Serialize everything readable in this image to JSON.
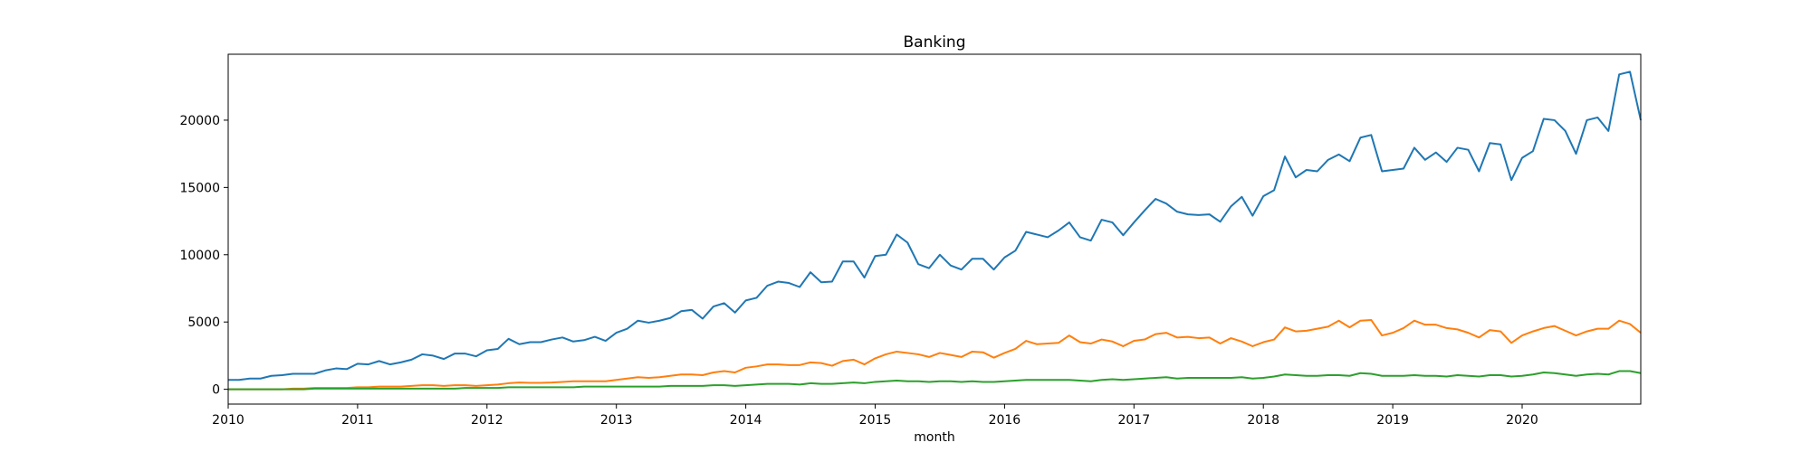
{
  "chart_data": {
    "type": "line",
    "title": "Banking",
    "xlabel": "month",
    "ylabel": "",
    "xlim": [
      "2010-01",
      "2020-12"
    ],
    "ylim": [
      -1100,
      24900
    ],
    "grid": false,
    "legend": "none",
    "x_ticks": [
      "2010",
      "2011",
      "2012",
      "2013",
      "2014",
      "2015",
      "2016",
      "2017",
      "2018",
      "2019",
      "2020"
    ],
    "y_ticks": [
      0,
      5000,
      10000,
      15000,
      20000
    ],
    "x_start": "2010-01",
    "series": [
      {
        "color": "#1f77b4",
        "values": [
          700,
          700,
          800,
          800,
          1000,
          1050,
          1150,
          1150,
          1150,
          1400,
          1550,
          1500,
          1900,
          1850,
          2100,
          1850,
          2000,
          2200,
          2600,
          2500,
          2250,
          2650,
          2650,
          2450,
          2900,
          3000,
          3750,
          3350,
          3500,
          3500,
          3700,
          3850,
          3550,
          3650,
          3900,
          3600,
          4200,
          4500,
          5100,
          4950,
          5100,
          5300,
          5800,
          5900,
          5250,
          6150,
          6400,
          5700,
          6600,
          6800,
          7700,
          8000,
          7900,
          7600,
          8700,
          7950,
          8000,
          9500,
          9500,
          8300,
          9900,
          10000,
          11500,
          10900,
          9300,
          9000,
          10000,
          9200,
          8900,
          9700,
          9700,
          8900,
          9800,
          10300,
          11700,
          11500,
          11300,
          11800,
          12400,
          11300,
          11050,
          12600,
          12400,
          11450,
          12400,
          13300,
          14150,
          13800,
          13200,
          13000,
          12950,
          13000,
          12450,
          13600,
          14300,
          12900,
          14350,
          14800,
          17300,
          15750,
          16300,
          16200,
          17050,
          17450,
          16950,
          18700,
          18900,
          16200,
          16300,
          16400,
          17950,
          17050,
          17600,
          16900,
          17950,
          17800,
          16200,
          18300,
          18200,
          15550,
          17200,
          17700,
          20100,
          20000,
          19200,
          17500,
          20000,
          20200,
          19200,
          23400,
          23600,
          20000
        ]
      },
      {
        "color": "#ff7f0e",
        "values": [
          0,
          0,
          0,
          0,
          0,
          0,
          50,
          50,
          100,
          100,
          100,
          100,
          150,
          150,
          200,
          200,
          200,
          250,
          300,
          300,
          250,
          300,
          300,
          250,
          300,
          350,
          450,
          500,
          480,
          480,
          500,
          550,
          600,
          600,
          600,
          600,
          700,
          800,
          900,
          850,
          900,
          1000,
          1100,
          1100,
          1050,
          1250,
          1350,
          1250,
          1600,
          1700,
          1850,
          1850,
          1800,
          1800,
          2000,
          1950,
          1750,
          2100,
          2200,
          1850,
          2300,
          2600,
          2800,
          2700,
          2600,
          2400,
          2700,
          2550,
          2400,
          2800,
          2750,
          2350,
          2700,
          3000,
          3600,
          3350,
          3400,
          3450,
          4000,
          3500,
          3400,
          3700,
          3550,
          3200,
          3600,
          3700,
          4100,
          4200,
          3850,
          3900,
          3800,
          3850,
          3400,
          3800,
          3550,
          3200,
          3500,
          3700,
          4600,
          4300,
          4350,
          4500,
          4650,
          5100,
          4600,
          5100,
          5150,
          4000,
          4200,
          4550,
          5100,
          4800,
          4800,
          4550,
          4450,
          4200,
          3850,
          4400,
          4300,
          3450,
          4000,
          4300,
          4550,
          4700,
          4350,
          4000,
          4300,
          4500,
          4500,
          5100,
          4850,
          4200
        ]
      },
      {
        "color": "#2ca02c",
        "values": [
          0,
          0,
          0,
          0,
          0,
          0,
          0,
          0,
          50,
          50,
          50,
          50,
          50,
          50,
          50,
          50,
          50,
          50,
          50,
          50,
          50,
          50,
          100,
          100,
          100,
          100,
          150,
          150,
          150,
          150,
          150,
          150,
          150,
          200,
          200,
          200,
          200,
          200,
          200,
          200,
          200,
          250,
          250,
          250,
          250,
          300,
          300,
          250,
          300,
          350,
          400,
          400,
          400,
          350,
          450,
          400,
          400,
          450,
          500,
          450,
          550,
          600,
          650,
          600,
          600,
          550,
          600,
          600,
          550,
          600,
          550,
          550,
          600,
          650,
          700,
          700,
          700,
          700,
          700,
          650,
          600,
          700,
          750,
          700,
          750,
          800,
          850,
          900,
          800,
          850,
          850,
          850,
          850,
          850,
          900,
          800,
          850,
          950,
          1100,
          1050,
          1000,
          1000,
          1050,
          1050,
          1000,
          1200,
          1150,
          1000,
          1000,
          1000,
          1050,
          1000,
          1000,
          950,
          1050,
          1000,
          950,
          1050,
          1050,
          950,
          1000,
          1100,
          1250,
          1200,
          1100,
          1000,
          1100,
          1150,
          1100,
          1350,
          1350,
          1200
        ]
      }
    ]
  }
}
